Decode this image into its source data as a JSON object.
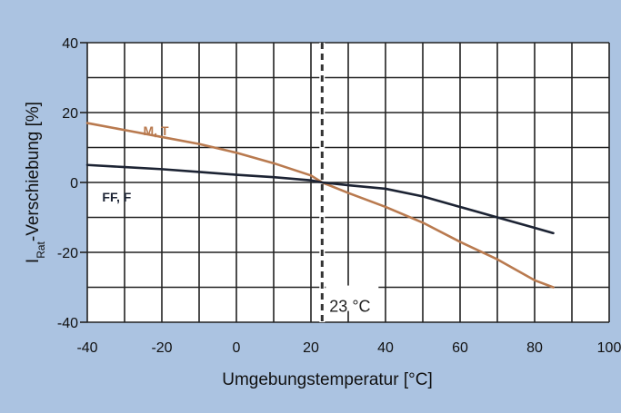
{
  "chart_data": {
    "type": "line",
    "xlabel": "Umgebungstemperatur [°C]",
    "ylabel_main": "I",
    "ylabel_sub": "Rat",
    "ylabel_rest": "-Verschiebung [%]",
    "xlim": [
      -40,
      100
    ],
    "ylim": [
      -40,
      40
    ],
    "xticks": [
      "-40",
      "-20",
      "0",
      "20",
      "40",
      "60",
      "80",
      "100"
    ],
    "yticks": [
      "40",
      "20",
      "0",
      "-20",
      "-40"
    ],
    "grid": true,
    "reference_line": {
      "x": 23,
      "label": "23 °C"
    },
    "series": [
      {
        "name": "M, T",
        "color": "#b97a4f",
        "x": [
          -40,
          -30,
          -20,
          -10,
          0,
          10,
          20,
          23,
          30,
          40,
          50,
          60,
          70,
          80,
          85
        ],
        "y": [
          17,
          15,
          13,
          11,
          8.5,
          5.5,
          2,
          0,
          -3,
          -7,
          -11.5,
          -17,
          -22,
          -28,
          -30
        ]
      },
      {
        "name": "FF, F",
        "color": "#1c2333",
        "x": [
          -40,
          -30,
          -20,
          -10,
          0,
          10,
          20,
          23,
          30,
          40,
          50,
          60,
          70,
          80,
          85
        ],
        "y": [
          5,
          4.4,
          3.8,
          3,
          2.2,
          1.5,
          0.6,
          0,
          -0.8,
          -1.8,
          -4,
          -7,
          -10,
          -13,
          -14.5
        ]
      }
    ]
  }
}
